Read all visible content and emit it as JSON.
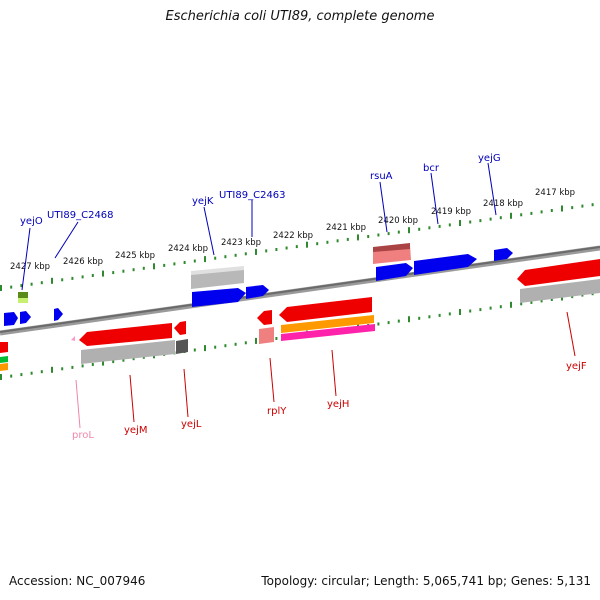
{
  "title": "Escherichia coli UTI89, complete genome",
  "footer": {
    "accession": "Accession: NC_007946",
    "topology": "Topology: circular; Length: 5,065,741 bp; Genes: 5,131"
  },
  "colors": {
    "backbone": "#777777",
    "tick": "#2f8a2f",
    "forward_label": "#0000bb",
    "reverse_label": "#cc0000",
    "pseudo_label": "#ee88aa",
    "cds_blue": "#0000ee",
    "cds_red": "#ee0000",
    "cds_grey": "#aaaaaa",
    "cds_orange": "#ff9900",
    "cds_magenta": "#ff00aa"
  },
  "scale_labels": [
    "2427 kbp",
    "2426 kbp",
    "2425 kbp",
    "2424 kbp",
    "2423 kbp",
    "2422 kbp",
    "2421 kbp",
    "2420 kbp",
    "2419 kbp",
    "2418 kbp",
    "2417 kbp"
  ],
  "forward_genes": [
    "yejO",
    "UTI89_C2468",
    "yejK",
    "UTI89_C2463",
    "rsuA",
    "bcr",
    "yejG"
  ],
  "reverse_genes": [
    "proL",
    "yejM",
    "yejL",
    "rplY",
    "yejH",
    "yejF"
  ]
}
